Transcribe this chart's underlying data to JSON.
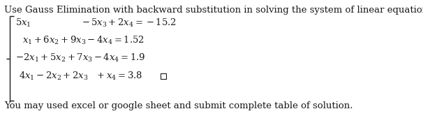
{
  "title": "Use Gauss Elimination with backward substitution in solving the system of linear equations",
  "eq1": "5$x_1$              $-\\,5x_3+2x_4=-15.2$",
  "eq2": "$x_1+6x_2+9x_3-4x_4=1.52$",
  "eq3": "$-2x_1+5x_2+7x_3-4x_4=1.9$",
  "eq4": "$4x_1-2x_2+2x_3\\;\\;+x_4=3.8$",
  "footer": "You may used excel or google sheet and submit complete table of solution.",
  "bg_color": "#ffffff",
  "text_color": "#1a1a1a",
  "font_size": 9.5
}
